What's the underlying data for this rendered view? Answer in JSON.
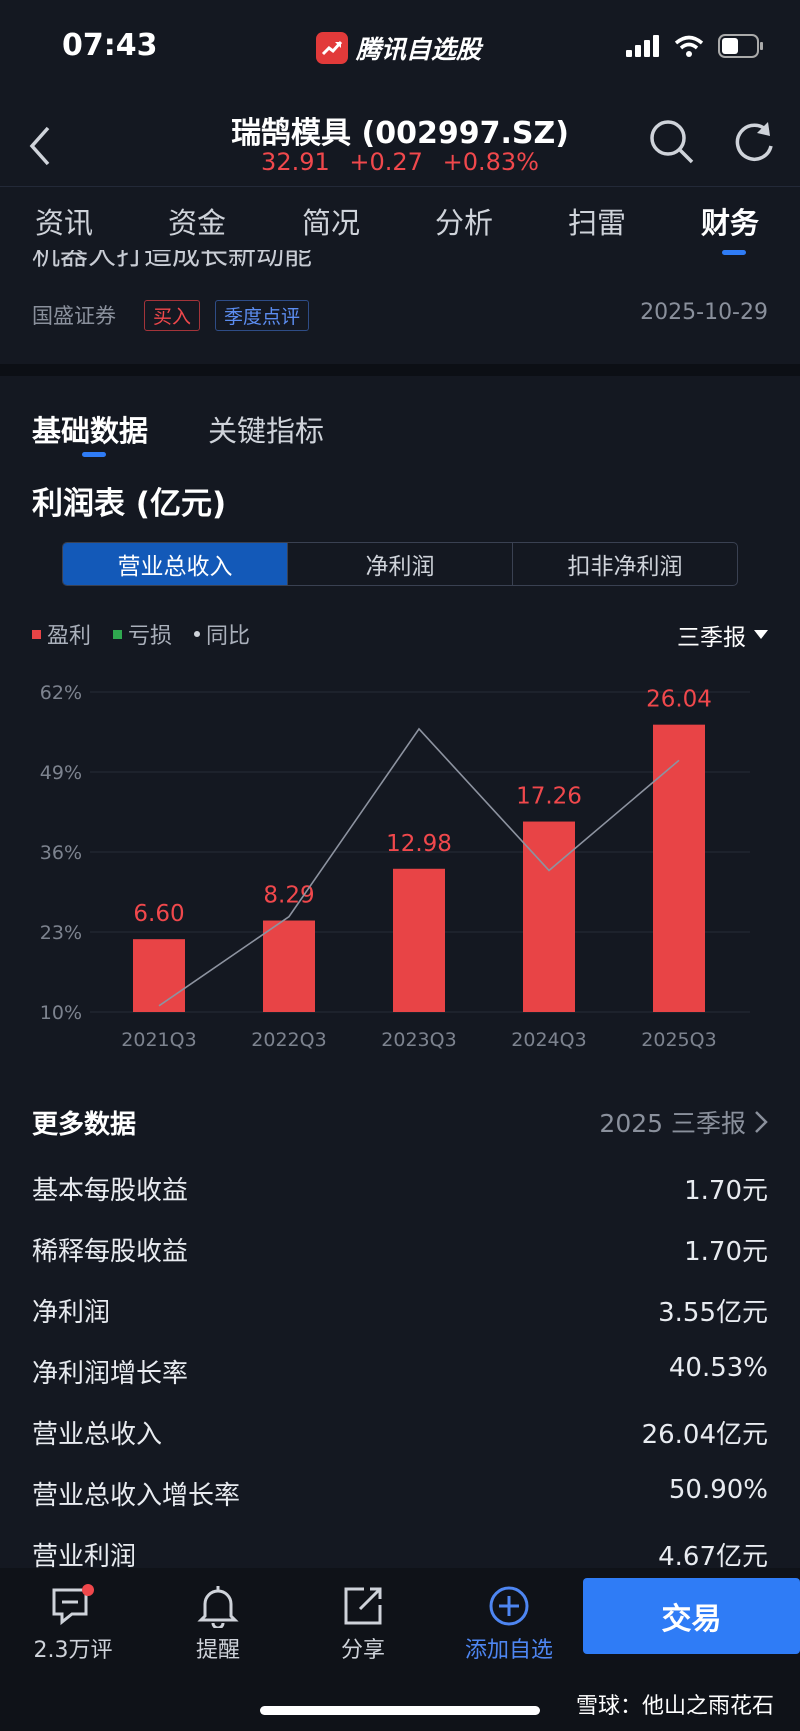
{
  "status_bar": {
    "time": "07:43",
    "app_name": "腾讯自选股"
  },
  "header": {
    "title": "瑞鹄模具 (002997.SZ)",
    "price": "32.91",
    "change": "+0.27",
    "change_pct": "+0.83%"
  },
  "tabs": [
    {
      "label": "资讯"
    },
    {
      "label": "资金"
    },
    {
      "label": "简况"
    },
    {
      "label": "分析"
    },
    {
      "label": "扫雷"
    },
    {
      "label": "财务"
    }
  ],
  "news": {
    "title_fragment": "机器人打造成长新动能",
    "source": "国盛证券",
    "tag_rating": "买入",
    "tag_type": "季度点评",
    "date": "2025-10-29"
  },
  "subtabs": {
    "basic": "基础数据",
    "key": "关键指标"
  },
  "section_title": "利润表 (亿元)",
  "segments": [
    {
      "label": "营业总收入"
    },
    {
      "label": "净利润"
    },
    {
      "label": "扣非净利润"
    }
  ],
  "legend": {
    "profit": "盈利",
    "loss": "亏损",
    "yoy": "同比"
  },
  "period_selector": "三季报",
  "colors": {
    "profit": "#e84446",
    "loss": "#2fa84f",
    "accent": "#2f7cf6"
  },
  "chart_data": {
    "type": "bar",
    "categories": [
      "2021Q3",
      "2022Q3",
      "2023Q3",
      "2024Q3",
      "2025Q3"
    ],
    "values": [
      6.6,
      8.29,
      12.98,
      17.26,
      26.04
    ],
    "value_labels": [
      "6.60",
      "8.29",
      "12.98",
      "17.26",
      "26.04"
    ],
    "bar_axis_max": 29,
    "yoy_line": [
      11,
      25.5,
      56,
      33,
      50.9
    ],
    "y_ticks": [
      "62%",
      "49%",
      "36%",
      "23%",
      "10%"
    ],
    "ylim": [
      10,
      62
    ]
  },
  "more": {
    "title": "更多数据",
    "period": "2025 三季报",
    "rows": [
      {
        "label": "基本每股收益",
        "value": "1.70元"
      },
      {
        "label": "稀释每股收益",
        "value": "1.70元"
      },
      {
        "label": "净利润",
        "value": "3.55亿元"
      },
      {
        "label": "净利润增长率",
        "value": "40.53%"
      },
      {
        "label": "营业总收入",
        "value": "26.04亿元"
      },
      {
        "label": "营业总收入增长率",
        "value": "50.90%"
      },
      {
        "label": "营业利润",
        "value": "4.67亿元"
      }
    ]
  },
  "bottom_bar": {
    "comments": "2.3万评",
    "alert": "提醒",
    "share": "分享",
    "add": "添加自选",
    "trade": "交易"
  },
  "watermark": "雪球：他山之雨花石"
}
